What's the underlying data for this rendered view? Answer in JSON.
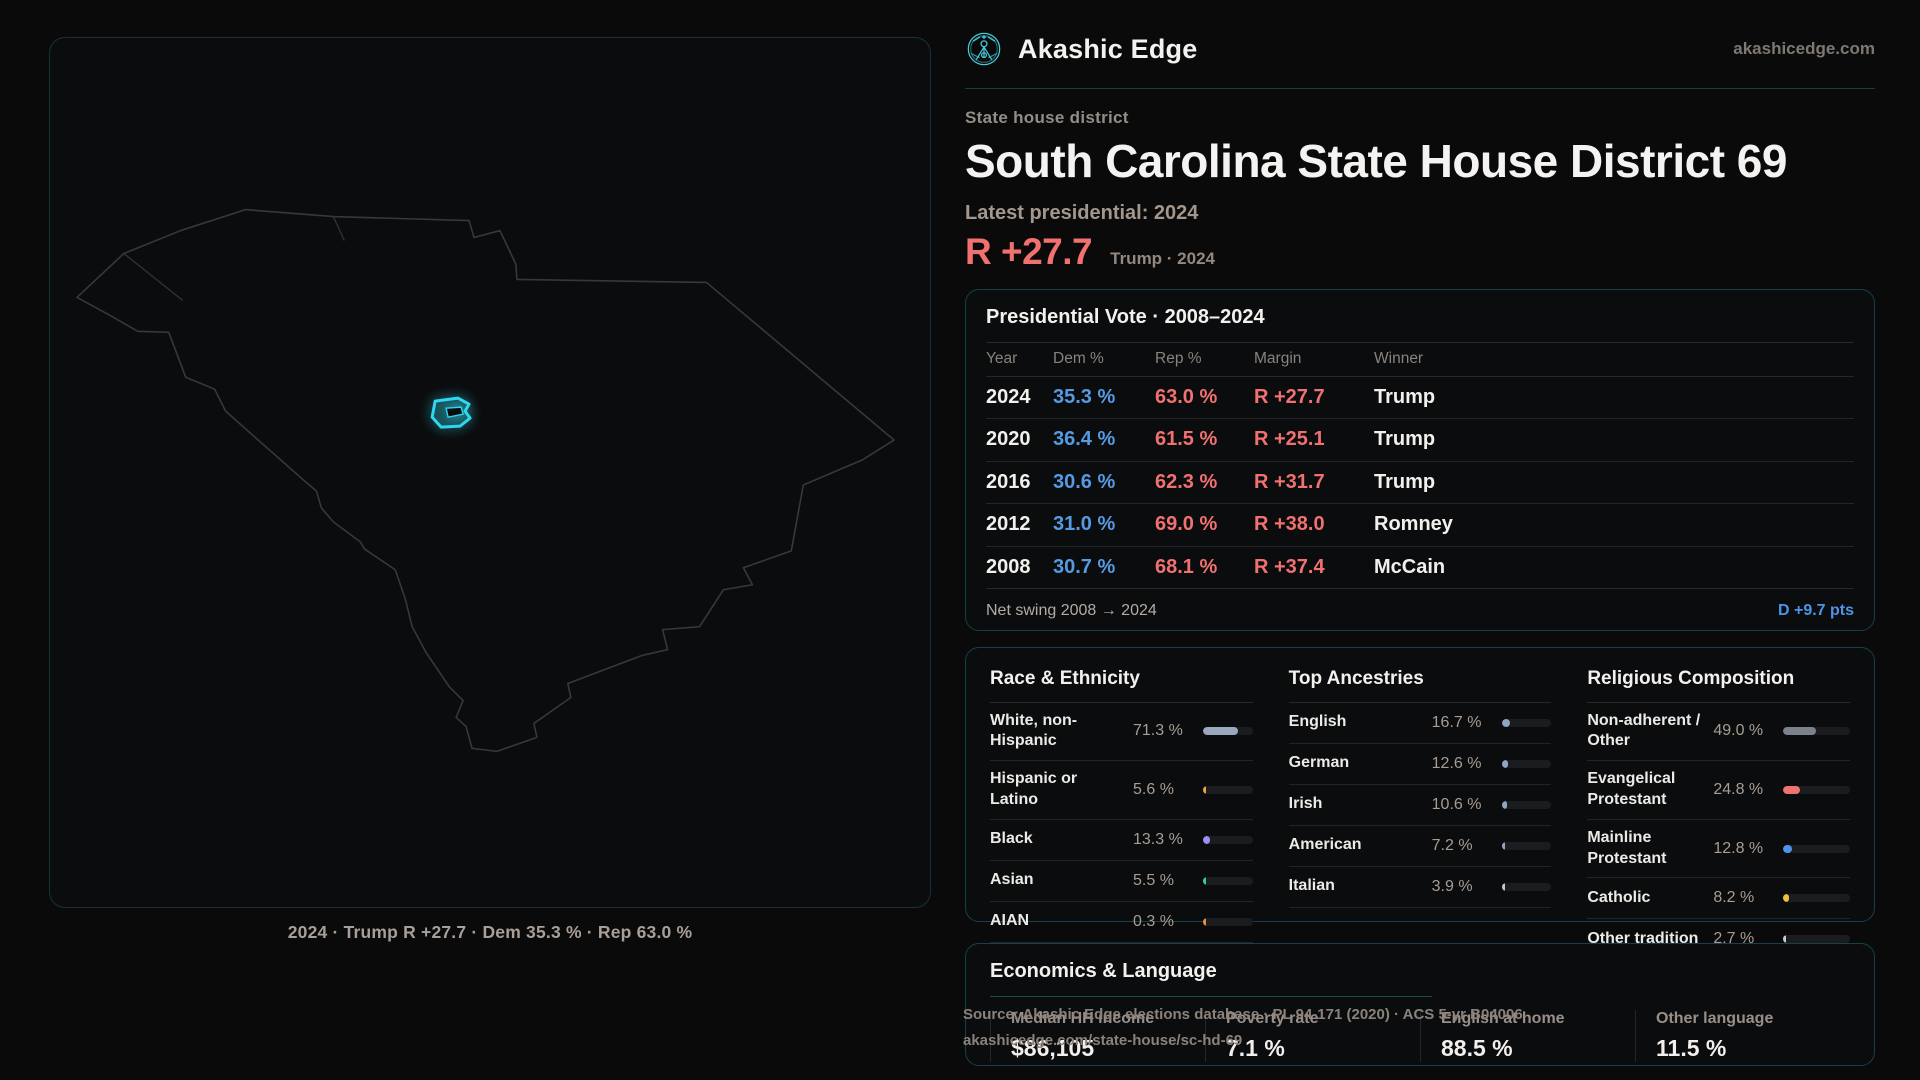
{
  "brand": {
    "name": "Akashic Edge",
    "domain": "akashicedge.com"
  },
  "page": {
    "kicker": "State house district",
    "title": "South Carolina State House District 69",
    "latest_label": "Latest presidential: 2024",
    "margin_big": "R +27.7",
    "margin_note": "Trump · 2024"
  },
  "map": {
    "caption": "2024 · Trump R +27.7 · Dem 35.3 % · Rep 63.0 %"
  },
  "vote": {
    "title": "Presidential Vote · 2008–2024",
    "columns": {
      "year": "Year",
      "dem": "Dem %",
      "rep": "Rep %",
      "margin": "Margin",
      "winner": "Winner"
    },
    "rows": [
      {
        "year": "2024",
        "dem": "35.3 %",
        "rep": "63.0 %",
        "margin": "R +27.7",
        "winner": "Trump"
      },
      {
        "year": "2020",
        "dem": "36.4 %",
        "rep": "61.5 %",
        "margin": "R +25.1",
        "winner": "Trump"
      },
      {
        "year": "2016",
        "dem": "30.6 %",
        "rep": "62.3 %",
        "margin": "R +31.7",
        "winner": "Trump"
      },
      {
        "year": "2012",
        "dem": "31.0 %",
        "rep": "69.0 %",
        "margin": "R +38.0",
        "winner": "Romney"
      },
      {
        "year": "2008",
        "dem": "30.7 %",
        "rep": "68.1 %",
        "margin": "R +37.4",
        "winner": "McCain"
      }
    ],
    "net_swing_label": "Net swing 2008 → 2024",
    "net_swing_value": "D +9.7 pts"
  },
  "demographics": [
    {
      "title": "Race & Ethnicity",
      "rows": [
        {
          "label": "White, non-Hispanic",
          "value": "71.3 %",
          "pct": 71.3,
          "color": "#9aa7bd"
        },
        {
          "label": "Hispanic or Latino",
          "value": "5.6 %",
          "pct": 5.6,
          "color": "#f0a13c"
        },
        {
          "label": "Black",
          "value": "13.3 %",
          "pct": 13.3,
          "color": "#9f8df5"
        },
        {
          "label": "Asian",
          "value": "5.5 %",
          "pct": 5.5,
          "color": "#35cf9a"
        },
        {
          "label": "AIAN",
          "value": "0.3 %",
          "pct": 0.3,
          "color": "#f08a3c"
        }
      ]
    },
    {
      "title": "Top Ancestries",
      "rows": [
        {
          "label": "English",
          "value": "16.7 %",
          "pct": 16.7,
          "color": "#8fa5c4"
        },
        {
          "label": "German",
          "value": "12.6 %",
          "pct": 12.6,
          "color": "#8fa5c4"
        },
        {
          "label": "Irish",
          "value": "10.6 %",
          "pct": 10.6,
          "color": "#8fa5c4"
        },
        {
          "label": "American",
          "value": "7.2 %",
          "pct": 7.2,
          "color": "#8fa5c4"
        },
        {
          "label": "Italian",
          "value": "3.9 %",
          "pct": 3.9,
          "color": "#c3c9d2"
        }
      ]
    },
    {
      "title": "Religious Composition",
      "rows": [
        {
          "label": "Non-adherent / Other",
          "value": "49.0 %",
          "pct": 49.0,
          "color": "#7c828c"
        },
        {
          "label": "Evangelical Protestant",
          "value": "24.8 %",
          "pct": 24.8,
          "color": "#ee7272"
        },
        {
          "label": "Mainline Protestant",
          "value": "12.8 %",
          "pct": 12.8,
          "color": "#4f94ea"
        },
        {
          "label": "Catholic",
          "value": "8.2 %",
          "pct": 8.2,
          "color": "#eebe3f"
        },
        {
          "label": "Other tradition",
          "value": "2.7 %",
          "pct": 2.7,
          "color": "#c9cdd2"
        }
      ]
    }
  ],
  "economics": {
    "title": "Economics & Language",
    "stats": [
      {
        "label": "Median HH income",
        "value": "$86,105"
      },
      {
        "label": "Poverty rate",
        "value": "7.1 %"
      },
      {
        "label": "English at home",
        "value": "88.5 %"
      },
      {
        "label": "Other language",
        "value": "11.5 %"
      }
    ]
  },
  "source": {
    "line1": "Source: Akashic Edge elections database · PL 94-171 (2020) · ACS 5-yr B04006",
    "line2": "akashicedge.com/state-house/sc-hd-69"
  },
  "colors": {
    "accent_cyan": "#2fd6ef",
    "dem_blue": "#569ae3",
    "rep_red": "#f17170",
    "swing_blue": "#4d94e8"
  }
}
